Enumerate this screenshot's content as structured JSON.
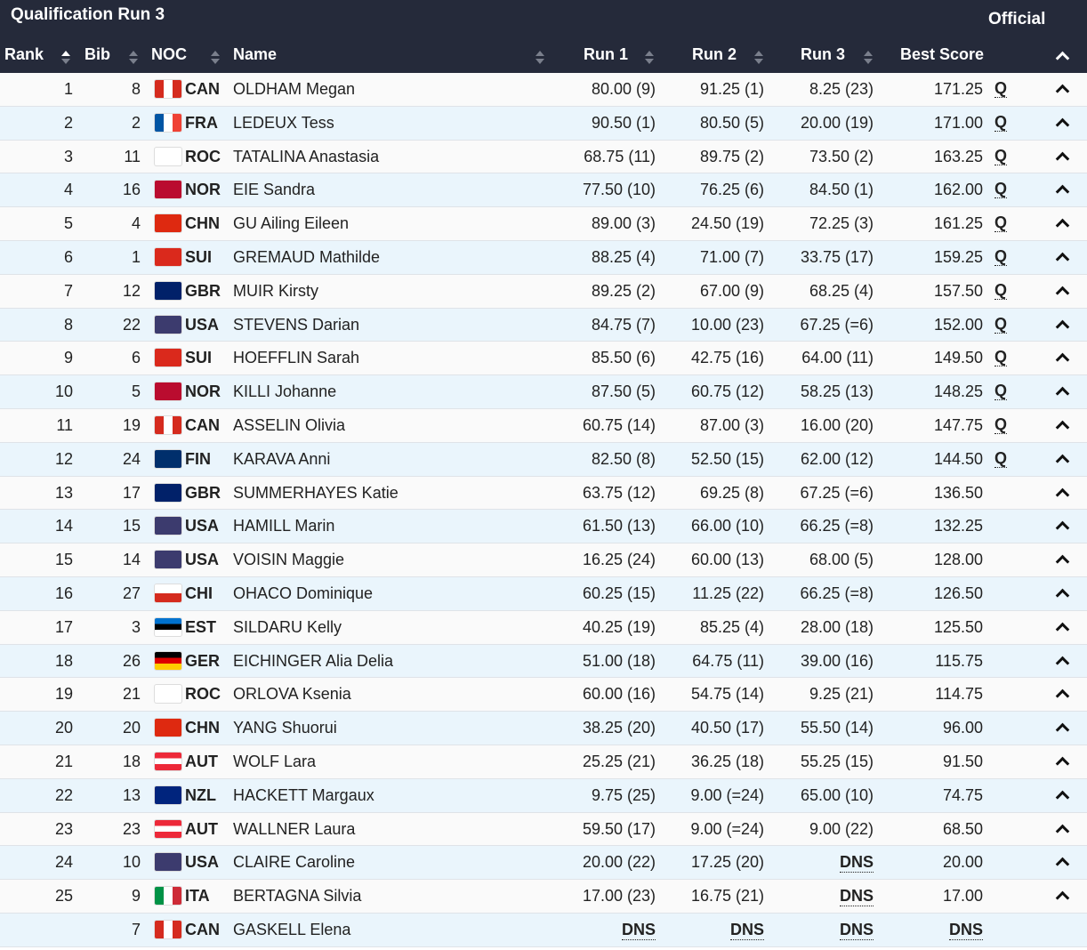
{
  "header": {
    "title": "Qualification Run 3",
    "status": "Official"
  },
  "columns": {
    "rank": "Rank",
    "bib": "Bib",
    "noc": "NOC",
    "name": "Name",
    "run1": "Run 1",
    "run2": "Run 2",
    "run3": "Run 3",
    "best": "Best Score"
  },
  "flags": {
    "CAN": "#d52b1e",
    "FRA": "#0055a4",
    "ROC": "#ffffff",
    "NOR": "#ba0c2f",
    "CHN": "#de2910",
    "SUI": "#da291c",
    "GBR": "#012169",
    "USA": "#3c3b6e",
    "FIN": "#002f6c",
    "CHI": "#d52b1e",
    "EST": "#0072ce",
    "GER": "#000000",
    "AUT": "#ed2939",
    "NZL": "#00247d",
    "ITA": "#009246"
  },
  "rows": [
    [
      "1",
      "8",
      "CAN",
      "OLDHAM Megan",
      "80.00 (9)",
      "91.25 (1)",
      "8.25 (23)",
      "171.25",
      "Q"
    ],
    [
      "2",
      "2",
      "FRA",
      "LEDEUX Tess",
      "90.50 (1)",
      "80.50 (5)",
      "20.00 (19)",
      "171.00",
      "Q"
    ],
    [
      "3",
      "11",
      "ROC",
      "TATALINA Anastasia",
      "68.75 (11)",
      "89.75 (2)",
      "73.50 (2)",
      "163.25",
      "Q"
    ],
    [
      "4",
      "16",
      "NOR",
      "EIE Sandra",
      "77.50 (10)",
      "76.25 (6)",
      "84.50 (1)",
      "162.00",
      "Q"
    ],
    [
      "5",
      "4",
      "CHN",
      "GU Ailing Eileen",
      "89.00 (3)",
      "24.50 (19)",
      "72.25 (3)",
      "161.25",
      "Q"
    ],
    [
      "6",
      "1",
      "SUI",
      "GREMAUD Mathilde",
      "88.25 (4)",
      "71.00 (7)",
      "33.75 (17)",
      "159.25",
      "Q"
    ],
    [
      "7",
      "12",
      "GBR",
      "MUIR Kirsty",
      "89.25 (2)",
      "67.00 (9)",
      "68.25 (4)",
      "157.50",
      "Q"
    ],
    [
      "8",
      "22",
      "USA",
      "STEVENS Darian",
      "84.75 (7)",
      "10.00 (23)",
      "67.25 (=6)",
      "152.00",
      "Q"
    ],
    [
      "9",
      "6",
      "SUI",
      "HOEFFLIN Sarah",
      "85.50 (6)",
      "42.75 (16)",
      "64.00 (11)",
      "149.50",
      "Q"
    ],
    [
      "10",
      "5",
      "NOR",
      "KILLI Johanne",
      "87.50 (5)",
      "60.75 (12)",
      "58.25 (13)",
      "148.25",
      "Q"
    ],
    [
      "11",
      "19",
      "CAN",
      "ASSELIN Olivia",
      "60.75 (14)",
      "87.00 (3)",
      "16.00 (20)",
      "147.75",
      "Q"
    ],
    [
      "12",
      "24",
      "FIN",
      "KARAVA Anni",
      "82.50 (8)",
      "52.50 (15)",
      "62.00 (12)",
      "144.50",
      "Q"
    ],
    [
      "13",
      "17",
      "GBR",
      "SUMMERHAYES Katie",
      "63.75 (12)",
      "69.25 (8)",
      "67.25 (=6)",
      "136.50",
      ""
    ],
    [
      "14",
      "15",
      "USA",
      "HAMILL Marin",
      "61.50 (13)",
      "66.00 (10)",
      "66.25 (=8)",
      "132.25",
      ""
    ],
    [
      "15",
      "14",
      "USA",
      "VOISIN Maggie",
      "16.25 (24)",
      "60.00 (13)",
      "68.00 (5)",
      "128.00",
      ""
    ],
    [
      "16",
      "27",
      "CHI",
      "OHACO Dominique",
      "60.25 (15)",
      "11.25 (22)",
      "66.25 (=8)",
      "126.50",
      ""
    ],
    [
      "17",
      "3",
      "EST",
      "SILDARU Kelly",
      "40.25 (19)",
      "85.25 (4)",
      "28.00 (18)",
      "125.50",
      ""
    ],
    [
      "18",
      "26",
      "GER",
      "EICHINGER Alia Delia",
      "51.00 (18)",
      "64.75 (11)",
      "39.00 (16)",
      "115.75",
      ""
    ],
    [
      "19",
      "21",
      "ROC",
      "ORLOVA Ksenia",
      "60.00 (16)",
      "54.75 (14)",
      "9.25 (21)",
      "114.75",
      ""
    ],
    [
      "20",
      "20",
      "CHN",
      "YANG Shuorui",
      "38.25 (20)",
      "40.50 (17)",
      "55.50 (14)",
      "96.00",
      ""
    ],
    [
      "21",
      "18",
      "AUT",
      "WOLF Lara",
      "25.25 (21)",
      "36.25 (18)",
      "55.25 (15)",
      "91.50",
      ""
    ],
    [
      "22",
      "13",
      "NZL",
      "HACKETT Margaux",
      "9.75 (25)",
      "9.00 (=24)",
      "65.00 (10)",
      "74.75",
      ""
    ],
    [
      "23",
      "23",
      "AUT",
      "WALLNER Laura",
      "59.50 (17)",
      "9.00 (=24)",
      "9.00 (22)",
      "68.50",
      ""
    ],
    [
      "24",
      "10",
      "USA",
      "CLAIRE Caroline",
      "20.00 (22)",
      "17.25 (20)",
      "DNS",
      "20.00",
      ""
    ],
    [
      "25",
      "9",
      "ITA",
      "BERTAGNA Silvia",
      "17.00 (23)",
      "16.75 (21)",
      "DNS",
      "17.00",
      ""
    ],
    [
      "",
      "7",
      "CAN",
      "GASKELL Elena",
      "DNS",
      "DNS",
      "DNS",
      "DNS",
      ""
    ]
  ]
}
